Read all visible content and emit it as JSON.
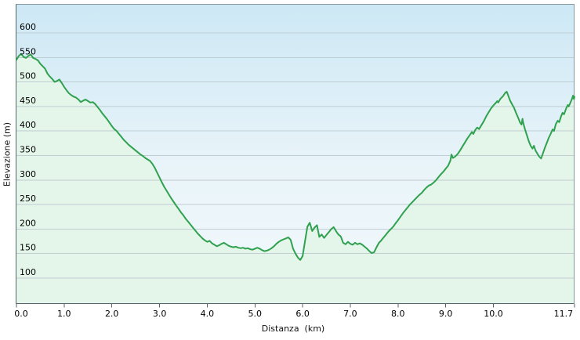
{
  "chart_data": {
    "type": "area",
    "title": "",
    "xlabel": "Distanza  (km)",
    "ylabel": "Elevazione (m)",
    "xlim": [
      0,
      11.7
    ],
    "ylim": [
      50,
      659
    ],
    "grid": "horizontal gridlines every 50 m, no vertical gridlines",
    "legend": "none",
    "y_gridlines": [
      600,
      550,
      500,
      450,
      400,
      350,
      300,
      250,
      200,
      150,
      100
    ],
    "x_ticks": [
      0,
      1,
      2,
      3,
      4,
      5,
      6,
      7,
      8,
      9,
      10,
      11.7
    ],
    "x_tick_labels": [
      "0.0",
      "1.0",
      "2.0",
      "3.0",
      "4.0",
      "5.0",
      "6.0",
      "7.0",
      "8.0",
      "9.0",
      "10.0",
      "11.7"
    ],
    "series": [
      {
        "name": "elevazione",
        "units": {
          "x": "km",
          "y": "m"
        },
        "points": [
          [
            0,
            545
          ],
          [
            0.05,
            553
          ],
          [
            0.1,
            557
          ],
          [
            0.15,
            551
          ],
          [
            0.2,
            549
          ],
          [
            0.25,
            553
          ],
          [
            0.3,
            556
          ],
          [
            0.35,
            549
          ],
          [
            0.4,
            547
          ],
          [
            0.45,
            544
          ],
          [
            0.5,
            537
          ],
          [
            0.55,
            532
          ],
          [
            0.6,
            527
          ],
          [
            0.65,
            517
          ],
          [
            0.7,
            511
          ],
          [
            0.75,
            506
          ],
          [
            0.8,
            500
          ],
          [
            0.85,
            502
          ],
          [
            0.9,
            505
          ],
          [
            0.95,
            498
          ],
          [
            1,
            490
          ],
          [
            1.05,
            483
          ],
          [
            1.1,
            477
          ],
          [
            1.15,
            473
          ],
          [
            1.2,
            470
          ],
          [
            1.25,
            468
          ],
          [
            1.3,
            464
          ],
          [
            1.35,
            459
          ],
          [
            1.4,
            462
          ],
          [
            1.45,
            464
          ],
          [
            1.5,
            461
          ],
          [
            1.55,
            458
          ],
          [
            1.6,
            459
          ],
          [
            1.65,
            455
          ],
          [
            1.7,
            449
          ],
          [
            1.75,
            443
          ],
          [
            1.8,
            436
          ],
          [
            1.85,
            430
          ],
          [
            1.9,
            424
          ],
          [
            1.95,
            417
          ],
          [
            2,
            410
          ],
          [
            2.05,
            404
          ],
          [
            2.1,
            400
          ],
          [
            2.15,
            394
          ],
          [
            2.2,
            388
          ],
          [
            2.25,
            382
          ],
          [
            2.3,
            377
          ],
          [
            2.35,
            372
          ],
          [
            2.4,
            368
          ],
          [
            2.45,
            364
          ],
          [
            2.5,
            360
          ],
          [
            2.55,
            356
          ],
          [
            2.6,
            352
          ],
          [
            2.65,
            349
          ],
          [
            2.7,
            345
          ],
          [
            2.75,
            342
          ],
          [
            2.8,
            339
          ],
          [
            2.85,
            333
          ],
          [
            2.9,
            325
          ],
          [
            2.95,
            315
          ],
          [
            3,
            305
          ],
          [
            3.05,
            295
          ],
          [
            3.1,
            286
          ],
          [
            3.15,
            278
          ],
          [
            3.2,
            270
          ],
          [
            3.25,
            262
          ],
          [
            3.3,
            255
          ],
          [
            3.35,
            248
          ],
          [
            3.4,
            241
          ],
          [
            3.45,
            234
          ],
          [
            3.5,
            228
          ],
          [
            3.55,
            221
          ],
          [
            3.6,
            215
          ],
          [
            3.65,
            209
          ],
          [
            3.7,
            203
          ],
          [
            3.75,
            197
          ],
          [
            3.8,
            191
          ],
          [
            3.85,
            186
          ],
          [
            3.9,
            181
          ],
          [
            3.95,
            177
          ],
          [
            4,
            174
          ],
          [
            4.05,
            176
          ],
          [
            4.1,
            171
          ],
          [
            4.15,
            168
          ],
          [
            4.2,
            165
          ],
          [
            4.25,
            167
          ],
          [
            4.3,
            170
          ],
          [
            4.35,
            172
          ],
          [
            4.4,
            169
          ],
          [
            4.45,
            166
          ],
          [
            4.5,
            164
          ],
          [
            4.55,
            163
          ],
          [
            4.6,
            164
          ],
          [
            4.65,
            162
          ],
          [
            4.7,
            161
          ],
          [
            4.75,
            162
          ],
          [
            4.8,
            160
          ],
          [
            4.85,
            161
          ],
          [
            4.9,
            159
          ],
          [
            4.95,
            158
          ],
          [
            5,
            160
          ],
          [
            5.05,
            162
          ],
          [
            5.1,
            160
          ],
          [
            5.15,
            157
          ],
          [
            5.2,
            155
          ],
          [
            5.25,
            156
          ],
          [
            5.3,
            158
          ],
          [
            5.35,
            161
          ],
          [
            5.4,
            165
          ],
          [
            5.45,
            170
          ],
          [
            5.5,
            174
          ],
          [
            5.55,
            177
          ],
          [
            5.6,
            179
          ],
          [
            5.65,
            181
          ],
          [
            5.7,
            183
          ],
          [
            5.75,
            178
          ],
          [
            5.8,
            160
          ],
          [
            5.85,
            150
          ],
          [
            5.9,
            142
          ],
          [
            5.95,
            137
          ],
          [
            6,
            145
          ],
          [
            6.05,
            175
          ],
          [
            6.1,
            205
          ],
          [
            6.15,
            213
          ],
          [
            6.2,
            196
          ],
          [
            6.25,
            203
          ],
          [
            6.3,
            208
          ],
          [
            6.35,
            184
          ],
          [
            6.4,
            189
          ],
          [
            6.45,
            182
          ],
          [
            6.5,
            188
          ],
          [
            6.55,
            194
          ],
          [
            6.6,
            200
          ],
          [
            6.65,
            204
          ],
          [
            6.7,
            196
          ],
          [
            6.75,
            189
          ],
          [
            6.8,
            185
          ],
          [
            6.85,
            172
          ],
          [
            6.9,
            169
          ],
          [
            6.95,
            174
          ],
          [
            7,
            170
          ],
          [
            7.05,
            168
          ],
          [
            7.1,
            172
          ],
          [
            7.15,
            169
          ],
          [
            7.2,
            171
          ],
          [
            7.25,
            168
          ],
          [
            7.3,
            164
          ],
          [
            7.35,
            160
          ],
          [
            7.4,
            155
          ],
          [
            7.45,
            151
          ],
          [
            7.5,
            153
          ],
          [
            7.55,
            163
          ],
          [
            7.6,
            172
          ],
          [
            7.65,
            177
          ],
          [
            7.7,
            183
          ],
          [
            7.75,
            189
          ],
          [
            7.8,
            195
          ],
          [
            7.85,
            200
          ],
          [
            7.9,
            205
          ],
          [
            7.95,
            212
          ],
          [
            8,
            218
          ],
          [
            8.05,
            225
          ],
          [
            8.1,
            232
          ],
          [
            8.15,
            238
          ],
          [
            8.2,
            244
          ],
          [
            8.25,
            250
          ],
          [
            8.3,
            255
          ],
          [
            8.35,
            260
          ],
          [
            8.4,
            265
          ],
          [
            8.45,
            270
          ],
          [
            8.5,
            274
          ],
          [
            8.55,
            280
          ],
          [
            8.6,
            285
          ],
          [
            8.65,
            289
          ],
          [
            8.7,
            291
          ],
          [
            8.75,
            295
          ],
          [
            8.8,
            300
          ],
          [
            8.85,
            306
          ],
          [
            8.9,
            312
          ],
          [
            8.95,
            317
          ],
          [
            9,
            323
          ],
          [
            9.05,
            329
          ],
          [
            9.1,
            340
          ],
          [
            9.12,
            352
          ],
          [
            9.15,
            345
          ],
          [
            9.2,
            348
          ],
          [
            9.25,
            353
          ],
          [
            9.3,
            360
          ],
          [
            9.35,
            368
          ],
          [
            9.4,
            376
          ],
          [
            9.45,
            384
          ],
          [
            9.5,
            391
          ],
          [
            9.55,
            398
          ],
          [
            9.58,
            394
          ],
          [
            9.62,
            402
          ],
          [
            9.66,
            407
          ],
          [
            9.7,
            404
          ],
          [
            9.75,
            412
          ],
          [
            9.8,
            420
          ],
          [
            9.85,
            430
          ],
          [
            9.9,
            438
          ],
          [
            9.95,
            446
          ],
          [
            10,
            452
          ],
          [
            10.05,
            457
          ],
          [
            10.08,
            461
          ],
          [
            10.1,
            458
          ],
          [
            10.15,
            466
          ],
          [
            10.2,
            471
          ],
          [
            10.25,
            478
          ],
          [
            10.28,
            480
          ],
          [
            10.3,
            475
          ],
          [
            10.35,
            462
          ],
          [
            10.4,
            453
          ],
          [
            10.43,
            448
          ],
          [
            10.47,
            438
          ],
          [
            10.52,
            427
          ],
          [
            10.56,
            417
          ],
          [
            10.59,
            413
          ],
          [
            10.61,
            425
          ],
          [
            10.63,
            415
          ],
          [
            10.66,
            404
          ],
          [
            10.7,
            392
          ],
          [
            10.74,
            380
          ],
          [
            10.78,
            370
          ],
          [
            10.82,
            364
          ],
          [
            10.85,
            370
          ],
          [
            10.88,
            361
          ],
          [
            10.92,
            354
          ],
          [
            10.96,
            348
          ],
          [
            11,
            344
          ],
          [
            11.04,
            355
          ],
          [
            11.08,
            366
          ],
          [
            11.12,
            376
          ],
          [
            11.16,
            386
          ],
          [
            11.2,
            394
          ],
          [
            11.24,
            403
          ],
          [
            11.27,
            400
          ],
          [
            11.31,
            414
          ],
          [
            11.35,
            421
          ],
          [
            11.38,
            418
          ],
          [
            11.42,
            430
          ],
          [
            11.45,
            437
          ],
          [
            11.48,
            434
          ],
          [
            11.53,
            447
          ],
          [
            11.56,
            453
          ],
          [
            11.58,
            450
          ],
          [
            11.62,
            459
          ],
          [
            11.65,
            466
          ],
          [
            11.67,
            472
          ],
          [
            11.69,
            465
          ],
          [
            11.7,
            470
          ]
        ]
      }
    ]
  },
  "colors": {
    "line": "#2fa14f",
    "area_fill": "#e4f5e9",
    "plot_gradient_top": "#cde8f5",
    "plot_gradient_mid": "#e9f4f9",
    "plot_gradient_bottom": "#f2f9fc",
    "gridline": "#c0cdd3",
    "border_light": "#87989f",
    "axis": "#55646d",
    "text": "#000000",
    "page_background": "#ffffff"
  }
}
